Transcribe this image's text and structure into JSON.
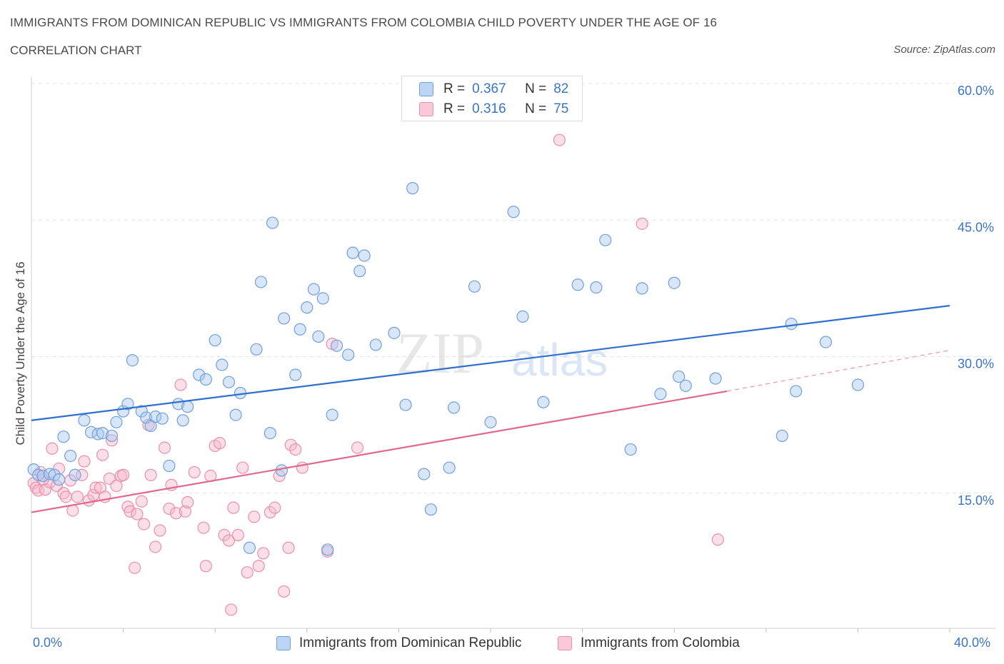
{
  "header": {
    "title": "IMMIGRANTS FROM DOMINICAN REPUBLIC VS IMMIGRANTS FROM COLOMBIA CHILD POVERTY UNDER THE AGE OF 16",
    "subtitle": "CORRELATION CHART",
    "source": "Source: ZipAtlas.com"
  },
  "watermark": {
    "zip": "ZIP",
    "atlas": "atlas"
  },
  "legend_top": {
    "rows": [
      {
        "r_label": "R =",
        "r_value": "0.367",
        "n_label": "N =",
        "n_value": "82"
      },
      {
        "r_label": "R =",
        "r_value": "0.316",
        "n_label": "N =",
        "n_value": "75"
      }
    ]
  },
  "legend_bottom": {
    "items": [
      "Immigrants from Dominican Republic",
      "Immigrants from Colombia"
    ]
  },
  "colors": {
    "blue_fill": "#a9c8f0",
    "blue_stroke": "#6fa0de",
    "blue_line": "#2f6fcf",
    "pink_fill": "#f7b8cb",
    "pink_stroke": "#ec8fac",
    "pink_line": "#e0688f",
    "axis_text": "#3a74c7",
    "grid": "#e3e3e3"
  },
  "chart_data": {
    "type": "scatter",
    "title": "IMMIGRANTS FROM DOMINICAN REPUBLIC VS IMMIGRANTS FROM COLOMBIA CHILD POVERTY UNDER THE AGE OF 16",
    "xlabel": "",
    "ylabel": "Child Poverty Under the Age of 16",
    "xlim": [
      0,
      42
    ],
    "ylim": [
      0,
      60
    ],
    "x_tick_labels": [
      "0.0%",
      "40.0%"
    ],
    "y_ticks": [
      15,
      30,
      45,
      60
    ],
    "y_tick_labels": [
      "15.0%",
      "30.0%",
      "45.0%",
      "60.0%"
    ],
    "grid": true,
    "legend_position": "bottom",
    "series": [
      {
        "name": "Immigrants from Dominican Republic",
        "color": "#6fa0de",
        "R": 0.367,
        "N": 82,
        "trend": {
          "x": [
            0,
            40
          ],
          "y": [
            23.0,
            35.6
          ]
        },
        "points": [
          [
            0.1,
            17.6
          ],
          [
            0.3,
            17.0
          ],
          [
            0.5,
            16.9
          ],
          [
            0.8,
            17.1
          ],
          [
            1.0,
            17.0
          ],
          [
            1.2,
            16.5
          ],
          [
            1.4,
            21.2
          ],
          [
            1.7,
            19.1
          ],
          [
            1.9,
            17.0
          ],
          [
            2.3,
            23.0
          ],
          [
            2.6,
            21.7
          ],
          [
            2.9,
            21.5
          ],
          [
            3.1,
            21.6
          ],
          [
            3.5,
            21.3
          ],
          [
            3.7,
            22.8
          ],
          [
            4.0,
            24.0
          ],
          [
            4.2,
            24.8
          ],
          [
            4.4,
            29.6
          ],
          [
            4.8,
            24.0
          ],
          [
            5.0,
            23.3
          ],
          [
            5.2,
            22.4
          ],
          [
            5.4,
            23.4
          ],
          [
            5.7,
            23.2
          ],
          [
            6.0,
            18.0
          ],
          [
            6.4,
            24.8
          ],
          [
            6.6,
            23.0
          ],
          [
            6.8,
            24.5
          ],
          [
            7.3,
            28.0
          ],
          [
            7.6,
            27.5
          ],
          [
            8.0,
            31.8
          ],
          [
            8.3,
            29.1
          ],
          [
            8.6,
            27.2
          ],
          [
            8.9,
            23.6
          ],
          [
            9.1,
            26.0
          ],
          [
            9.5,
            9.0
          ],
          [
            9.8,
            30.8
          ],
          [
            10.0,
            38.2
          ],
          [
            10.4,
            21.6
          ],
          [
            10.5,
            44.7
          ],
          [
            10.9,
            17.5
          ],
          [
            11.0,
            34.2
          ],
          [
            11.5,
            28.0
          ],
          [
            11.7,
            33.0
          ],
          [
            12.0,
            35.4
          ],
          [
            12.3,
            37.4
          ],
          [
            12.5,
            32.2
          ],
          [
            12.7,
            36.4
          ],
          [
            12.9,
            8.8
          ],
          [
            13.1,
            23.6
          ],
          [
            13.3,
            31.2
          ],
          [
            13.8,
            30.2
          ],
          [
            14.0,
            41.4
          ],
          [
            14.3,
            39.4
          ],
          [
            14.5,
            41.1
          ],
          [
            15.0,
            31.3
          ],
          [
            15.8,
            32.6
          ],
          [
            16.3,
            24.7
          ],
          [
            16.6,
            48.5
          ],
          [
            17.1,
            17.1
          ],
          [
            17.4,
            13.2
          ],
          [
            18.2,
            17.8
          ],
          [
            18.4,
            24.4
          ],
          [
            19.3,
            37.7
          ],
          [
            20.0,
            22.8
          ],
          [
            21.0,
            45.9
          ],
          [
            21.4,
            34.4
          ],
          [
            22.3,
            25.0
          ],
          [
            23.8,
            37.9
          ],
          [
            24.6,
            37.6
          ],
          [
            25.0,
            42.8
          ],
          [
            26.1,
            19.8
          ],
          [
            26.6,
            37.5
          ],
          [
            27.4,
            25.9
          ],
          [
            28.0,
            38.1
          ],
          [
            28.2,
            27.8
          ],
          [
            28.5,
            26.8
          ],
          [
            29.8,
            27.6
          ],
          [
            32.7,
            21.3
          ],
          [
            33.1,
            33.6
          ],
          [
            33.3,
            26.2
          ],
          [
            34.6,
            31.6
          ],
          [
            36.0,
            26.9
          ]
        ]
      },
      {
        "name": "Immigrants from Colombia",
        "color": "#ec8fac",
        "R": 0.316,
        "N": 75,
        "trend": {
          "x": [
            0,
            30.3
          ],
          "y": [
            12.9,
            26.2
          ]
        },
        "trend_dashed": {
          "x": [
            30.3,
            40
          ],
          "y": [
            26.2,
            30.7
          ]
        },
        "points": [
          [
            0.1,
            16.1
          ],
          [
            0.2,
            15.6
          ],
          [
            0.3,
            15.3
          ],
          [
            0.4,
            17.3
          ],
          [
            0.6,
            15.4
          ],
          [
            0.8,
            16.2
          ],
          [
            0.9,
            19.9
          ],
          [
            1.1,
            15.8
          ],
          [
            1.2,
            17.7
          ],
          [
            1.4,
            15.0
          ],
          [
            1.5,
            14.6
          ],
          [
            1.7,
            16.4
          ],
          [
            1.8,
            13.1
          ],
          [
            2.0,
            14.6
          ],
          [
            2.2,
            17.0
          ],
          [
            2.3,
            18.5
          ],
          [
            2.5,
            14.2
          ],
          [
            2.7,
            14.8
          ],
          [
            2.8,
            15.6
          ],
          [
            3.0,
            15.6
          ],
          [
            3.1,
            19.2
          ],
          [
            3.2,
            14.6
          ],
          [
            3.4,
            16.6
          ],
          [
            3.5,
            20.8
          ],
          [
            3.7,
            15.8
          ],
          [
            3.9,
            16.9
          ],
          [
            4.0,
            17.0
          ],
          [
            4.2,
            13.5
          ],
          [
            4.3,
            13.0
          ],
          [
            4.5,
            6.8
          ],
          [
            4.6,
            12.7
          ],
          [
            4.8,
            14.1
          ],
          [
            4.9,
            11.6
          ],
          [
            5.1,
            22.5
          ],
          [
            5.2,
            17.0
          ],
          [
            5.4,
            9.1
          ],
          [
            5.6,
            10.9
          ],
          [
            5.8,
            20.0
          ],
          [
            6.0,
            13.3
          ],
          [
            6.1,
            15.9
          ],
          [
            6.3,
            12.8
          ],
          [
            6.5,
            26.9
          ],
          [
            6.7,
            13.0
          ],
          [
            6.8,
            14.0
          ],
          [
            7.1,
            17.3
          ],
          [
            7.5,
            11.2
          ],
          [
            7.6,
            7.0
          ],
          [
            7.8,
            16.9
          ],
          [
            8.0,
            20.2
          ],
          [
            8.2,
            20.5
          ],
          [
            8.4,
            10.4
          ],
          [
            8.6,
            9.8
          ],
          [
            8.7,
            2.2
          ],
          [
            8.8,
            13.4
          ],
          [
            9.0,
            10.4
          ],
          [
            9.2,
            17.8
          ],
          [
            9.4,
            6.3
          ],
          [
            9.7,
            12.4
          ],
          [
            9.9,
            7.0
          ],
          [
            10.1,
            8.4
          ],
          [
            10.4,
            12.9
          ],
          [
            10.6,
            13.4
          ],
          [
            10.8,
            16.9
          ],
          [
            11.0,
            4.2
          ],
          [
            11.2,
            9.0
          ],
          [
            11.3,
            20.3
          ],
          [
            11.5,
            19.8
          ],
          [
            11.8,
            17.8
          ],
          [
            12.9,
            8.6
          ],
          [
            13.1,
            31.4
          ],
          [
            14.2,
            20.0
          ],
          [
            23.0,
            53.8
          ],
          [
            26.6,
            44.6
          ],
          [
            29.9,
            9.9
          ],
          [
            0.5,
            16.5
          ]
        ]
      }
    ]
  }
}
